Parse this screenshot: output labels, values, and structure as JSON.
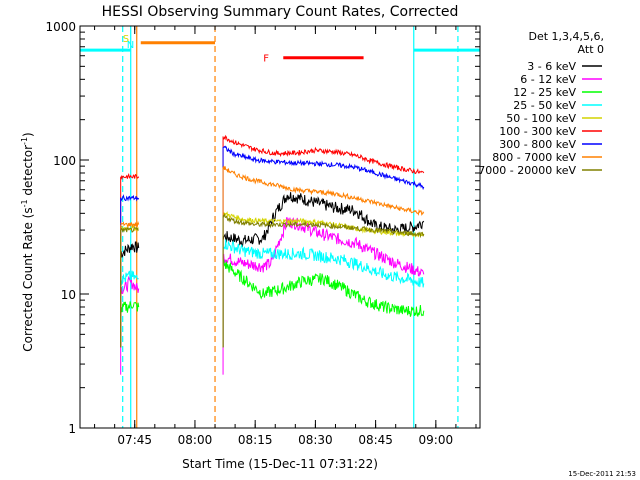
{
  "chart_data": {
    "type": "line",
    "title": "HESSI Observing Summary Count Rates, Corrected",
    "xlabel": "Start Time (15-Dec-11 07:31:22)",
    "ylabel_main": "Corrected Count Rate (s",
    "ylabel_sup1": "-1",
    "ylabel_mid": " detector",
    "ylabel_sup2": "-1",
    "ylabel_end": ")",
    "yscale": "log",
    "ylim": [
      1,
      1000
    ],
    "xlim": [
      "07:31:22",
      "09:11:00"
    ],
    "yticks": [
      "1",
      "10",
      "100",
      "1000"
    ],
    "xticks": [
      "07:45",
      "08:00",
      "08:15",
      "08:30",
      "08:45",
      "09:00"
    ],
    "timestamp": "15-Dec-2011 21:53",
    "legend": {
      "placement": "right",
      "header1": "Det 1,3,4,5,6,",
      "header2": "Att 0"
    },
    "series": [
      {
        "name": "3 - 6 keV",
        "color": "#000000",
        "segments": [
          {
            "x": [
              "07:41:30",
              "07:42:30",
              "07:43:30",
              "07:44:30",
              "07:45:30",
              "07:46:00"
            ],
            "y": [
              20,
              21,
              22,
              23,
              22,
              22
            ]
          },
          {
            "x": [
              "08:07:00",
              "08:12:00",
              "08:17:00",
              "08:20:00",
              "08:23:00",
              "08:26:00",
              "08:30:00",
              "08:35:00",
              "08:40:00",
              "08:45:00",
              "08:50:00",
              "08:55:00",
              "08:57:00"
            ],
            "y": [
              27,
              25,
              26,
              40,
              55,
              52,
              48,
              44,
              42,
              32,
              30,
              32,
              35
            ]
          }
        ]
      },
      {
        "name": "6 - 12 keV",
        "color": "#ff00ff",
        "segments": [
          {
            "x": [
              "07:41:30",
              "07:42:30",
              "07:43:30",
              "07:44:30",
              "07:45:30",
              "07:46:00"
            ],
            "y": [
              11,
              11,
              12,
              12,
              11,
              11
            ]
          },
          {
            "x": [
              "08:07:00",
              "08:12:00",
              "08:17:00",
              "08:19:00",
              "08:21:00",
              "08:23:00",
              "08:26:00",
              "08:30:00",
              "08:35:00",
              "08:40:00",
              "08:45:00",
              "08:50:00",
              "08:55:00",
              "08:57:00"
            ],
            "y": [
              19,
              17,
              16,
              17,
              25,
              35,
              33,
              29,
              26,
              24,
              20,
              17,
              15,
              14
            ]
          }
        ]
      },
      {
        "name": "12 - 25 keV",
        "color": "#00ff00",
        "segments": [
          {
            "x": [
              "07:41:30",
              "07:42:30",
              "07:43:30",
              "07:44:30",
              "07:45:30",
              "07:46:00"
            ],
            "y": [
              7.5,
              8,
              8,
              8.5,
              8,
              8
            ]
          },
          {
            "x": [
              "08:07:00",
              "08:12:00",
              "08:17:00",
              "08:22:00",
              "08:27:00",
              "08:32:00",
              "08:37:00",
              "08:42:00",
              "08:47:00",
              "08:52:00",
              "08:57:00"
            ],
            "y": [
              17,
              13,
              10,
              11,
              12.5,
              13,
              11,
              9,
              8,
              7.5,
              7.5
            ]
          }
        ]
      },
      {
        "name": "25 - 50 keV",
        "color": "#00ffff",
        "segments": [
          {
            "x": [
              "07:41:30",
              "07:42:30",
              "07:43:30",
              "07:44:30",
              "07:45:30",
              "07:46:00"
            ],
            "y": [
              13,
              13,
              13.5,
              13.5,
              13,
              13
            ]
          },
          {
            "x": [
              "08:07:00",
              "08:12:00",
              "08:17:00",
              "08:22:00",
              "08:27:00",
              "08:32:00",
              "08:37:00",
              "08:42:00",
              "08:47:00",
              "08:52:00",
              "08:57:00"
            ],
            "y": [
              24,
              21,
              20,
              20,
              20,
              19,
              18,
              16,
              14,
              13,
              12
            ]
          }
        ]
      },
      {
        "name": "50 - 100 keV",
        "color": "#d4d400",
        "segments": [
          {
            "x": [
              "07:41:30",
              "07:42:30",
              "07:43:30",
              "07:44:30",
              "07:45:30",
              "07:46:00"
            ],
            "y": [
              31,
              31,
              31,
              31,
              31,
              31
            ]
          },
          {
            "x": [
              "08:07:00",
              "08:12:00",
              "08:17:00",
              "08:22:00",
              "08:27:00",
              "08:32:00",
              "08:37:00",
              "08:42:00",
              "08:47:00",
              "08:52:00",
              "08:57:00"
            ],
            "y": [
              40,
              36,
              35,
              35,
              35,
              34,
              32,
              30,
              29,
              28,
              28
            ]
          }
        ]
      },
      {
        "name": "100 - 300 keV",
        "color": "#ff0000",
        "segments": [
          {
            "x": [
              "07:41:30",
              "07:42:30",
              "07:43:30",
              "07:44:30",
              "07:45:30",
              "07:46:00"
            ],
            "y": [
              75,
              75,
              75,
              75,
              75,
              75
            ]
          },
          {
            "x": [
              "08:07:00",
              "08:10:00",
              "08:15:00",
              "08:20:00",
              "08:25:00",
              "08:30:00",
              "08:35:00",
              "08:40:00",
              "08:45:00",
              "08:50:00",
              "08:55:00",
              "08:57:00"
            ],
            "y": [
              150,
              135,
              120,
              112,
              113,
              118,
              115,
              108,
              96,
              88,
              82,
              80
            ]
          }
        ]
      },
      {
        "name": "300 - 800 keV",
        "color": "#0000ff",
        "segments": [
          {
            "x": [
              "07:41:30",
              "07:42:30",
              "07:43:30",
              "07:44:30",
              "07:45:30",
              "07:46:00"
            ],
            "y": [
              52,
              52,
              52,
              52,
              52,
              52
            ]
          },
          {
            "x": [
              "08:07:00",
              "08:10:00",
              "08:15:00",
              "08:20:00",
              "08:25:00",
              "08:30:00",
              "08:35:00",
              "08:40:00",
              "08:45:00",
              "08:50:00",
              "08:55:00",
              "08:57:00"
            ],
            "y": [
              125,
              110,
              100,
              97,
              95,
              94,
              92,
              88,
              80,
              72,
              66,
              63
            ]
          }
        ]
      },
      {
        "name": "800 - 7000 keV",
        "color": "#ff8000",
        "segments": [
          {
            "x": [
              "07:41:30",
              "07:42:30",
              "07:43:30",
              "07:44:30",
              "07:45:30",
              "07:46:00"
            ],
            "y": [
              33,
              33,
              33,
              33,
              33,
              33
            ]
          },
          {
            "x": [
              "08:07:00",
              "08:10:00",
              "08:15:00",
              "08:20:00",
              "08:25:00",
              "08:30:00",
              "08:35:00",
              "08:40:00",
              "08:45:00",
              "08:50:00",
              "08:55:00",
              "08:57:00"
            ],
            "y": [
              88,
              78,
              70,
              65,
              60,
              58,
              56,
              52,
              48,
              44,
              41,
              40
            ]
          }
        ]
      },
      {
        "name": "7000 - 20000 keV",
        "color": "#808000",
        "segments": [
          {
            "x": [
              "07:41:30",
              "07:42:30",
              "07:43:30",
              "07:44:30",
              "07:45:30",
              "07:46:00"
            ],
            "y": [
              30,
              30,
              30,
              30,
              30,
              30
            ]
          },
          {
            "x": [
              "08:07:00",
              "08:10:00",
              "08:15:00",
              "08:20:00",
              "08:25:00",
              "08:30:00",
              "08:35:00",
              "08:40:00",
              "08:45:00",
              "08:50:00",
              "08:55:00",
              "08:57:00"
            ],
            "y": [
              38,
              35,
              33,
              33,
              33,
              33,
              32,
              31,
              30,
              29,
              28,
              28
            ]
          }
        ]
      }
    ],
    "annotations": [
      {
        "label": "S",
        "color": "#d4d400",
        "x": "07:45:00"
      },
      {
        "label": "N",
        "color": "#00ffff",
        "x": "07:46:00"
      },
      {
        "label": "F",
        "color": "#ff0000",
        "x": "08:20:00"
      }
    ],
    "bars": [
      {
        "name": "night-bar-start",
        "color": "#00ffff",
        "x": [
          "07:31:22",
          "07:44:00"
        ],
        "y": 660
      },
      {
        "name": "saa-bar",
        "color": "#ff8000",
        "x": [
          "07:46:30",
          "08:05:00"
        ],
        "y": 750
      },
      {
        "name": "flare-bar",
        "color": "#ff0000",
        "x": [
          "08:22:00",
          "08:42:00"
        ],
        "y": 580
      },
      {
        "name": "night-bar-end",
        "color": "#00ffff",
        "x": [
          "08:54:30",
          "09:11:00"
        ],
        "y": 660
      }
    ],
    "vlines": [
      {
        "name": "night-start-line-1",
        "color": "#00ffff",
        "x": "07:42:00",
        "dashed": true
      },
      {
        "name": "night-start-line-2",
        "color": "#00ffff",
        "x": "07:44:00",
        "dashed": false
      },
      {
        "name": "saa-start-line",
        "color": "#ff8000",
        "x": "07:45:30",
        "dashed": false
      },
      {
        "name": "saa-end-line",
        "color": "#ff8000",
        "x": "08:05:00",
        "dashed": true
      },
      {
        "name": "night-end-line-1",
        "color": "#00ffff",
        "x": "08:54:30",
        "dashed": false
      },
      {
        "name": "night-end-line-2",
        "color": "#00ffff",
        "x": "09:05:30",
        "dashed": true
      }
    ]
  }
}
